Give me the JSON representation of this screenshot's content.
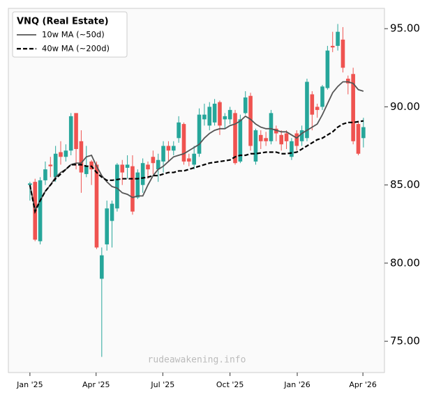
{
  "chart_data": {
    "type": "candlestick",
    "legend_title": "VNQ (Real Estate)",
    "watermark": "rudeawakening.info",
    "up_color": "#26a69a",
    "down_color": "#ef5350",
    "legend": "upper left",
    "x": [
      0,
      1,
      2,
      3,
      4,
      5,
      6,
      7,
      8,
      9,
      10,
      11,
      12,
      13,
      14,
      15,
      16,
      17,
      18,
      19,
      20,
      21,
      22,
      23,
      24,
      25,
      26,
      27,
      28,
      29,
      30,
      31,
      32,
      33,
      34,
      35,
      36,
      37,
      38,
      39,
      40,
      41,
      42,
      43,
      44,
      45,
      46,
      47,
      48,
      49,
      50,
      51,
      52,
      53,
      54,
      55,
      56,
      57,
      58,
      59,
      60,
      61,
      62,
      63,
      64,
      65
    ],
    "open": [
      85.0,
      85.2,
      81.4,
      85.3,
      86.3,
      85.5,
      87.1,
      86.8,
      87.2,
      89.6,
      87.8,
      85.7,
      86.5,
      86.3,
      79.0,
      81.2,
      82.7,
      83.5,
      86.3,
      86.1,
      86.2,
      84.2,
      85.0,
      86.3,
      86.8,
      86.0,
      86.5,
      87.5,
      87.2,
      88.0,
      88.9,
      86.7,
      86.3,
      87.0,
      89.2,
      88.8,
      89.0,
      90.3,
      89.2,
      89.2,
      89.6,
      86.5,
      89.6,
      90.7,
      86.5,
      88.2,
      88.0,
      87.8,
      88.6,
      88.2,
      88.3,
      86.8,
      88.3,
      87.8,
      88.0,
      90.8,
      90.0,
      90.0,
      91.2,
      93.9,
      93.9,
      94.3,
      91.8,
      92.1,
      88.9,
      88.0
    ],
    "high": [
      85.2,
      85.4,
      85.5,
      86.5,
      86.8,
      87.5,
      87.8,
      87.6,
      89.6,
      89.6,
      88.5,
      87.5,
      86.6,
      86.5,
      81.0,
      84.0,
      84.0,
      86.4,
      86.6,
      86.9,
      86.9,
      86.0,
      86.7,
      86.5,
      87.2,
      87.0,
      87.8,
      87.8,
      87.8,
      89.4,
      89.0,
      87.0,
      87.5,
      89.9,
      90.2,
      90.3,
      90.5,
      90.4,
      89.6,
      90.0,
      89.8,
      89.5,
      91.0,
      90.9,
      88.6,
      88.5,
      88.4,
      89.8,
      88.8,
      88.5,
      88.5,
      88.0,
      88.5,
      88.8,
      91.8,
      91.0,
      90.2,
      91.4,
      93.9,
      94.8,
      95.3,
      95.1,
      92.0,
      92.5,
      89.1,
      89.3
    ],
    "low": [
      84.0,
      81.4,
      81.2,
      85.0,
      85.5,
      85.2,
      86.3,
      86.5,
      86.9,
      86.0,
      84.5,
      85.5,
      85.0,
      80.9,
      74.0,
      80.8,
      81.0,
      83.3,
      85.0,
      85.4,
      83.1,
      84.1,
      84.5,
      85.4,
      85.7,
      85.2,
      85.8,
      86.5,
      86.9,
      87.7,
      86.3,
      86.2,
      86.0,
      86.8,
      88.8,
      88.5,
      88.8,
      88.2,
      88.6,
      88.9,
      86.3,
      86.4,
      89.5,
      87.2,
      86.3,
      87.3,
      87.5,
      87.6,
      87.8,
      87.2,
      87.3,
      86.6,
      87.2,
      87.5,
      87.8,
      88.5,
      89.3,
      89.8,
      91.1,
      93.5,
      93.6,
      92.2,
      90.8,
      87.6,
      86.9,
      87.4
    ],
    "close": [
      85.1,
      81.5,
      85.3,
      86.0,
      86.2,
      87.0,
      86.8,
      87.2,
      89.4,
      87.3,
      85.8,
      86.2,
      86.0,
      81.0,
      80.5,
      83.5,
      83.8,
      86.3,
      85.8,
      86.3,
      83.3,
      85.8,
      86.4,
      86.0,
      86.4,
      86.6,
      87.5,
      87.2,
      87.5,
      89.0,
      86.5,
      86.5,
      87.0,
      89.5,
      89.5,
      90.0,
      90.2,
      88.8,
      89.4,
      89.8,
      86.4,
      89.2,
      90.6,
      87.5,
      88.5,
      87.8,
      87.8,
      89.6,
      88.3,
      87.6,
      87.8,
      87.8,
      87.5,
      88.5,
      91.6,
      89.5,
      89.8,
      91.3,
      93.6,
      93.8,
      94.8,
      92.5,
      91.5,
      87.8,
      87.0,
      88.7
    ],
    "series": [
      {
        "name": "10w MA (~50d)",
        "color": "#555555",
        "dash": "solid",
        "values": [
          85.0,
          83.4,
          84.0,
          84.6,
          85.0,
          85.5,
          85.8,
          86.0,
          86.3,
          86.4,
          86.4,
          86.8,
          86.9,
          86.2,
          85.6,
          85.2,
          84.9,
          84.8,
          84.5,
          84.4,
          84.2,
          84.3,
          84.3,
          85.0,
          85.6,
          86.0,
          86.2,
          86.5,
          86.8,
          86.9,
          87.0,
          87.2,
          87.4,
          87.6,
          88.0,
          88.3,
          88.5,
          88.6,
          88.6,
          88.8,
          88.9,
          89.1,
          89.4,
          89.2,
          88.9,
          88.7,
          88.6,
          88.6,
          88.5,
          88.4,
          88.4,
          88.2,
          88.0,
          88.3,
          88.5,
          88.7,
          88.9,
          89.5,
          90.2,
          90.9,
          91.3,
          91.6,
          91.6,
          91.5,
          91.1,
          91.0
        ]
      },
      {
        "name": "40w MA (~200d)",
        "color": "#000000",
        "dash": "dashed",
        "values": [
          85.0,
          83.3,
          84.0,
          84.6,
          85.0,
          85.4,
          85.7,
          86.0,
          86.3,
          86.3,
          86.3,
          86.2,
          86.2,
          85.8,
          85.5,
          85.3,
          85.3,
          85.35,
          85.4,
          85.4,
          85.4,
          85.4,
          85.45,
          85.5,
          85.6,
          85.6,
          85.7,
          85.8,
          85.8,
          85.9,
          85.9,
          86.0,
          86.1,
          86.2,
          86.3,
          86.4,
          86.45,
          86.5,
          86.55,
          86.6,
          86.8,
          86.9,
          86.9,
          87.0,
          87.0,
          87.05,
          87.1,
          87.1,
          87.1,
          87.0,
          87.0,
          87.05,
          87.1,
          87.3,
          87.5,
          87.7,
          87.9,
          88.0,
          88.2,
          88.4,
          88.7,
          88.9,
          89.0,
          89.0,
          89.05,
          89.1
        ]
      }
    ],
    "xlim": [
      -4.2,
      69.1
    ],
    "xticks": [
      {
        "value": 0,
        "label": "Jan '25"
      },
      {
        "value": 12.9,
        "label": "Apr '25"
      },
      {
        "value": 25.9,
        "label": "Jul '25"
      },
      {
        "value": 39.0,
        "label": "Oct '25"
      },
      {
        "value": 52.1,
        "label": "Jan '26"
      },
      {
        "value": 64.9,
        "label": "Apr '26"
      }
    ],
    "ylim": [
      73.0,
      96.3
    ],
    "yticks": [
      {
        "value": 75,
        "label": "75.00"
      },
      {
        "value": 80,
        "label": "80.00"
      },
      {
        "value": 85,
        "label": "85.00"
      },
      {
        "value": 90,
        "label": "90.00"
      },
      {
        "value": 95,
        "label": "95.00"
      }
    ]
  }
}
